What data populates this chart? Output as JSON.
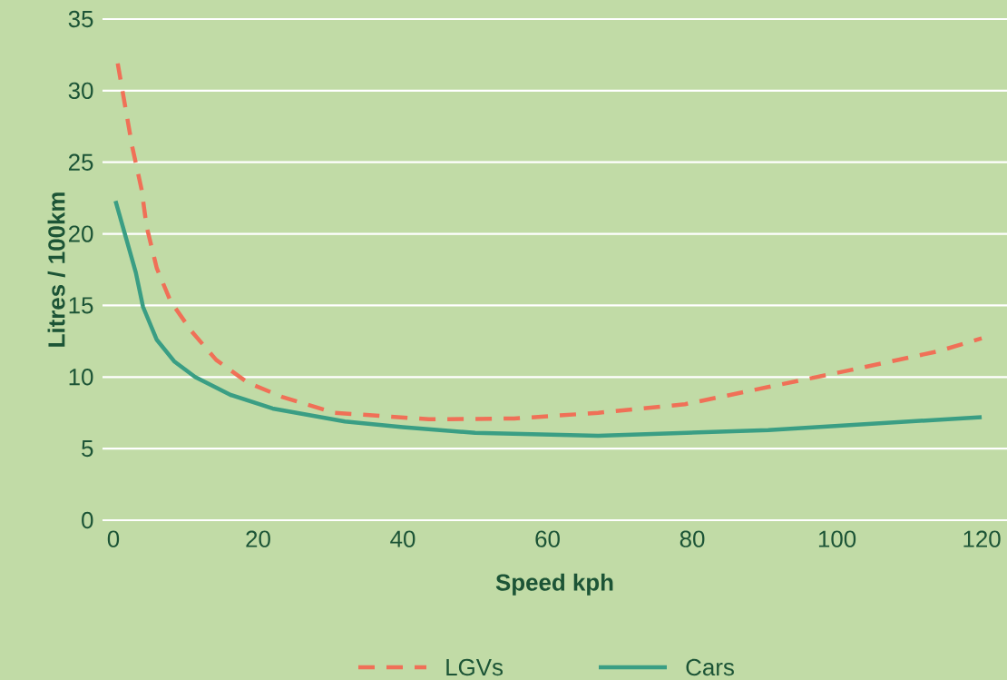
{
  "chart_data": {
    "type": "line",
    "xlabel": "Speed kph",
    "ylabel": "Litres / 100km",
    "xlim": [
      -1.5,
      123.5
    ],
    "ylim": [
      0,
      35
    ],
    "xticks": [
      0,
      20,
      40,
      60,
      80,
      100,
      120
    ],
    "yticks": [
      0,
      5,
      10,
      15,
      20,
      25,
      30,
      35
    ],
    "grid": "y",
    "legend": "bottom",
    "marker": "none",
    "series": [
      {
        "name": "LGVs",
        "color": "#f07057",
        "line_style": "dashed",
        "x": [
          0.6,
          1.6,
          2.6,
          3.9,
          4.6,
          6.0,
          7.9,
          10.8,
          14.2,
          18.6,
          23.4,
          30.6,
          43.6,
          55.4,
          67,
          79,
          90.5,
          102,
          114,
          120
        ],
        "values": [
          31.9,
          29.0,
          26.1,
          23.1,
          20.5,
          17.6,
          15.3,
          13.2,
          11.2,
          9.6,
          8.6,
          7.5,
          7.05,
          7.1,
          7.5,
          8.1,
          9.3,
          10.5,
          11.8,
          12.7
        ]
      },
      {
        "name": "Cars",
        "color": "#3a9e84",
        "line_style": "solid",
        "x": [
          0.3,
          3.1,
          4.1,
          6.0,
          8.4,
          11.3,
          16.2,
          22,
          32,
          40,
          50,
          67,
          90.5,
          120
        ],
        "values": [
          22.3,
          17.3,
          14.9,
          12.6,
          11.1,
          10.0,
          8.75,
          7.8,
          6.9,
          6.5,
          6.1,
          5.9,
          6.3,
          7.2
        ]
      }
    ]
  }
}
